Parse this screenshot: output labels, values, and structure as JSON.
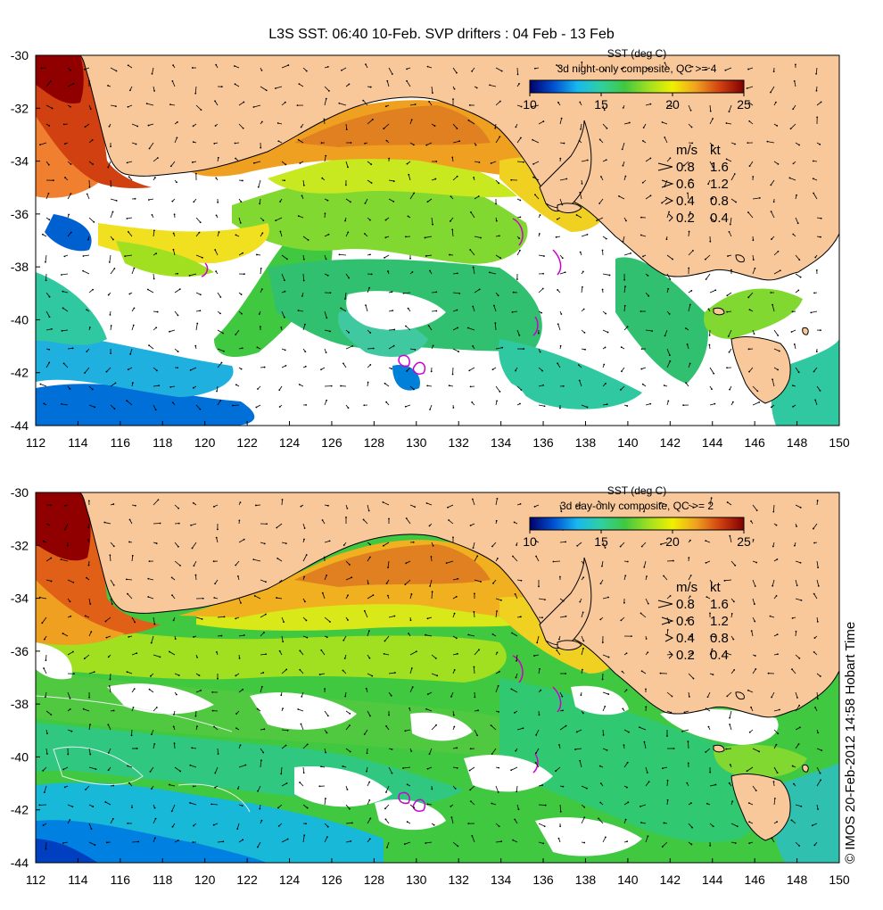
{
  "title": "L3S SST: 06:40 10-Feb. SVP drifters : 04 Feb - 13 Feb",
  "credit": "© IMOS 20-Feb-2012 14:58 Hobart Time",
  "colors": {
    "land": "#f8c89a",
    "sst_scale": [
      "#00006a",
      "#0050d0",
      "#18b8f0",
      "#30d0a0",
      "#40c840",
      "#a0e020",
      "#f0f000",
      "#f0a020",
      "#d04010",
      "#800000"
    ]
  },
  "axes": {
    "lon_ticks": [
      "112",
      "114",
      "116",
      "118",
      "120",
      "122",
      "124",
      "126",
      "128",
      "130",
      "132",
      "134",
      "136",
      "138",
      "140",
      "142",
      "144",
      "146",
      "148",
      "150"
    ],
    "lat_ticks": [
      "-30",
      "-32",
      "-34",
      "-36",
      "-38",
      "-40",
      "-42",
      "-44"
    ]
  },
  "speed_legend": {
    "header": [
      "m/s",
      "kt"
    ],
    "rows": [
      {
        "ms": "0.8",
        "kt": "1.6"
      },
      {
        "ms": "0.6",
        "kt": "1.2"
      },
      {
        "ms": "0.4",
        "kt": "0.8"
      },
      {
        "ms": "0.2",
        "kt": "0.4"
      }
    ]
  },
  "panels": [
    {
      "colorbar": {
        "title": "SST (deg C)",
        "subtitle": "3d night-only composite, QC >= 4",
        "ticks": [
          "10",
          "15",
          "20",
          "25"
        ]
      }
    },
    {
      "colorbar": {
        "title": "SST (deg C)",
        "subtitle": "3d day-only composite, QC >= 2",
        "ticks": [
          "10",
          "15",
          "20",
          "25"
        ]
      }
    }
  ]
}
